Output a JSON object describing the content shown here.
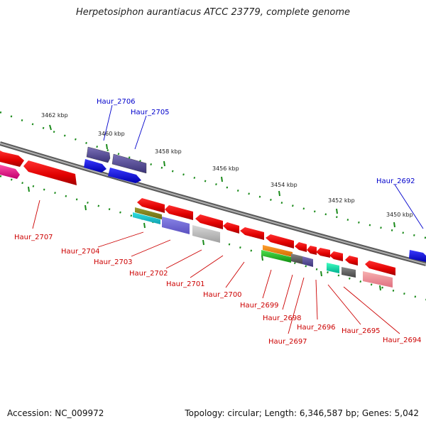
{
  "title": "Herpetosiphon aurantiacus ATCC 23779, complete genome",
  "footer": {
    "accession": "Accession: NC_009972",
    "summary": "Topology: circular; Length: 6,346,587 bp; Genes: 5,042"
  },
  "colors": {
    "backbone": "#888888",
    "tick_dots": "#1a8a1a",
    "label_forward": "#0000cc",
    "label_reverse": "#cc0000"
  },
  "scale_labels": [
    "3462 kbp",
    "3460 kbp",
    "3458 kbp",
    "3456 kbp",
    "3454 kbp",
    "3452 kbp",
    "3450 kbp"
  ],
  "genes_top": [
    "Haur_2706",
    "Haur_2705",
    "Haur_2692"
  ],
  "genes_bottom": [
    "Haur_2707",
    "Haur_2704",
    "Haur_2703",
    "Haur_2702",
    "Haur_2701",
    "Haur_2700",
    "Haur_2699",
    "Haur_2698",
    "Haur_2697",
    "Haur_2696",
    "Haur_2695",
    "Haur_2694"
  ]
}
